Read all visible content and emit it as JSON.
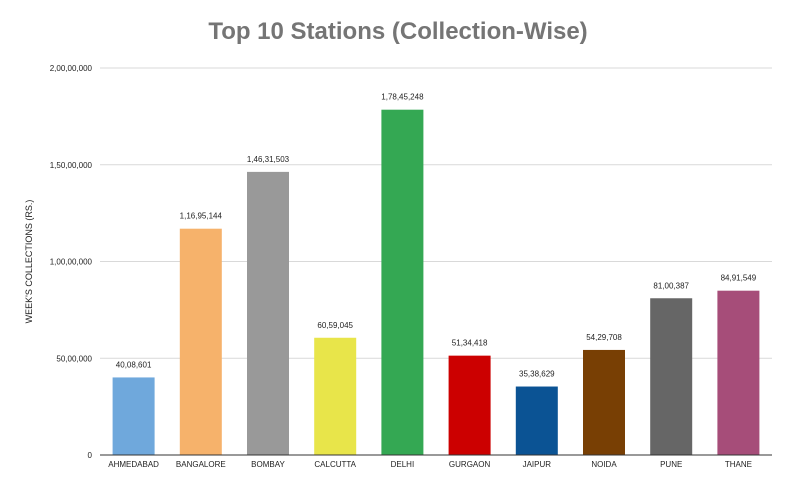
{
  "chart_data": {
    "type": "bar",
    "title": "Top 10 Stations (Collection-Wise)",
    "xlabel": "",
    "ylabel": "WEEK'S COLLECTIONS (RS.)",
    "ylim": [
      0,
      20000000
    ],
    "yticks": [
      0,
      5000000,
      10000000,
      15000000,
      20000000
    ],
    "ytick_labels": [
      "0",
      "50,00,000",
      "1,00,00,000",
      "1,50,00,000",
      "2,00,00,000"
    ],
    "grid": true,
    "categories": [
      "AHMEDABAD",
      "BANGALORE",
      "BOMBAY",
      "CALCUTTA",
      "DELHI",
      "GURGAON",
      "JAIPUR",
      "NOIDA",
      "PUNE",
      "THANE"
    ],
    "values": [
      4008601,
      11695144,
      14631503,
      6059045,
      17845248,
      5134418,
      3538629,
      5429708,
      8100387,
      8491549
    ],
    "value_labels": [
      "40,08,601",
      "1,16,95,144",
      "1,46,31,503",
      "60,59,045",
      "1,78,45,248",
      "51,34,418",
      "35,38,629",
      "54,29,708",
      "81,00,387",
      "84,91,549"
    ],
    "colors": [
      "#6fa8dc",
      "#f6b26b",
      "#999999",
      "#e8e54a",
      "#34a853",
      "#cc0000",
      "#0b5394",
      "#783f04",
      "#666666",
      "#a64d79"
    ]
  }
}
